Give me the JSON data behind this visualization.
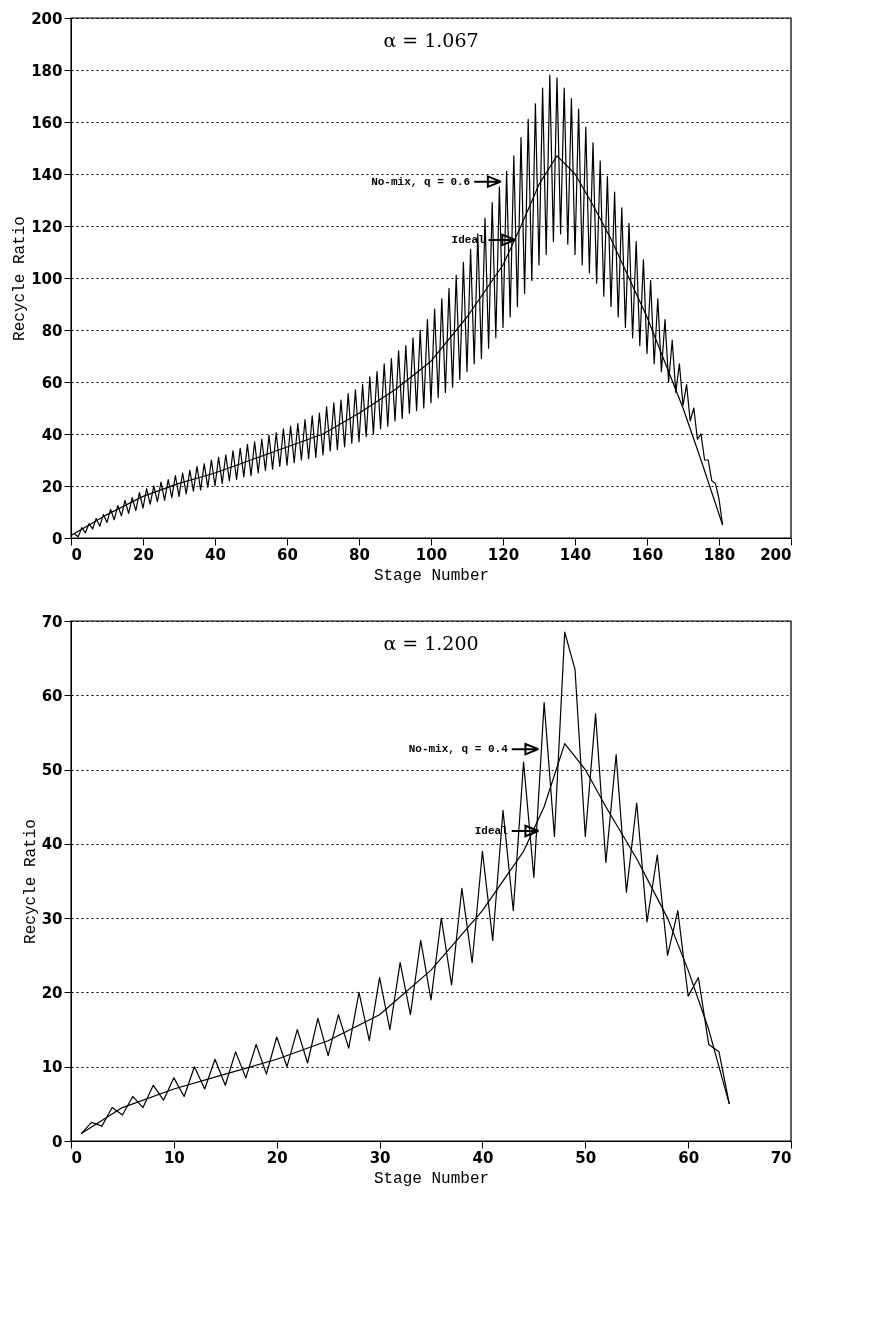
{
  "chart_data": [
    {
      "type": "line",
      "title": "α = 1.067",
      "xlabel": "Stage Number",
      "ylabel": "Recycle Ratio",
      "xlim": [
        0,
        200
      ],
      "ylim": [
        0,
        200
      ],
      "xticks": [
        0,
        20,
        40,
        60,
        80,
        100,
        120,
        140,
        160,
        180,
        200
      ],
      "yticks": [
        0,
        20,
        40,
        60,
        80,
        100,
        120,
        140,
        160,
        180,
        200
      ],
      "grid": "y",
      "legend": "top",
      "marker": "none",
      "line_style": "solid",
      "series": [
        {
          "name": "No-mix, q = 0.6",
          "color": "#000000",
          "x": [
            1,
            2,
            3,
            4,
            5,
            6,
            7,
            8,
            9,
            10,
            11,
            12,
            13,
            14,
            15,
            16,
            17,
            18,
            19,
            20,
            21,
            22,
            23,
            24,
            25,
            26,
            27,
            28,
            29,
            30,
            31,
            32,
            33,
            34,
            35,
            36,
            37,
            38,
            39,
            40,
            41,
            42,
            43,
            44,
            45,
            46,
            47,
            48,
            49,
            50,
            51,
            52,
            53,
            54,
            55,
            56,
            57,
            58,
            59,
            60,
            61,
            62,
            63,
            64,
            65,
            66,
            67,
            68,
            69,
            70,
            71,
            72,
            73,
            74,
            75,
            76,
            77,
            78,
            79,
            80,
            81,
            82,
            83,
            84,
            85,
            86,
            87,
            88,
            89,
            90,
            91,
            92,
            93,
            94,
            95,
            96,
            97,
            98,
            99,
            100,
            101,
            102,
            103,
            104,
            105,
            106,
            107,
            108,
            109,
            110,
            111,
            112,
            113,
            114,
            115,
            116,
            117,
            118,
            119,
            120,
            121,
            122,
            123,
            124,
            125,
            126,
            127,
            128,
            129,
            130,
            131,
            132,
            133,
            134,
            135,
            136,
            137,
            138,
            139,
            140,
            141,
            142,
            143,
            144,
            145,
            146,
            147,
            148,
            149,
            150,
            151,
            152,
            153,
            154,
            155,
            156,
            157,
            158,
            159,
            160,
            161,
            162,
            163,
            164,
            165,
            166,
            167,
            168,
            169,
            170,
            171,
            172,
            173,
            174,
            175,
            176,
            177,
            178,
            179,
            180,
            181
          ],
          "values": [
            1.5,
            0.5,
            4,
            2,
            5.5,
            3.5,
            7.5,
            4.5,
            9,
            6,
            11,
            7,
            12.5,
            8.5,
            14.5,
            9.5,
            15.5,
            10.5,
            17.5,
            11.5,
            19,
            13,
            20,
            14,
            21.5,
            14.5,
            22.5,
            15.5,
            24,
            16,
            25,
            17,
            26,
            18,
            27.5,
            18.5,
            28.5,
            19.5,
            30,
            20,
            31,
            21,
            32,
            22,
            33.5,
            22.5,
            34.5,
            23.5,
            36,
            24,
            37,
            25,
            38,
            26,
            39.5,
            26.5,
            40.5,
            27.5,
            42,
            28,
            43,
            29,
            44,
            30,
            45.5,
            30.5,
            47,
            31,
            48,
            32,
            50.5,
            33.5,
            52,
            34,
            53,
            35,
            55.5,
            36.5,
            57,
            37,
            59,
            39,
            62,
            40,
            64,
            42,
            67,
            43,
            69,
            45,
            72,
            46,
            74,
            48,
            77,
            49,
            80,
            50,
            84,
            52,
            88,
            54,
            92,
            56,
            96,
            58,
            101,
            61,
            106,
            64,
            111,
            67,
            117,
            69,
            123,
            73,
            129,
            77,
            135,
            81,
            141,
            85,
            147,
            89,
            154,
            94,
            161,
            99,
            167,
            105,
            173,
            109,
            178,
            114,
            177,
            117,
            173,
            113,
            169,
            109,
            165,
            105,
            158,
            102,
            152,
            98,
            145,
            93,
            139,
            89,
            133,
            85,
            127,
            81,
            121,
            77,
            114,
            74,
            107,
            71,
            99,
            67,
            92,
            64,
            84,
            60,
            76,
            56,
            67,
            51,
            59,
            45,
            50,
            38,
            40,
            30,
            30,
            22,
            21,
            15,
            5
          ]
        },
        {
          "name": "Ideal",
          "color": "#000000",
          "x": [
            0,
            5,
            10,
            20,
            30,
            40,
            50,
            60,
            70,
            80,
            90,
            100,
            110,
            120,
            125,
            130,
            135,
            140,
            145,
            150,
            160,
            170,
            175,
            181
          ],
          "values": [
            1,
            5,
            9,
            16,
            21,
            25,
            30,
            35,
            40,
            48,
            57,
            68,
            85,
            105,
            120,
            136,
            147,
            140,
            128,
            115,
            85,
            50,
            30,
            5
          ]
        }
      ]
    },
    {
      "type": "line",
      "title": "α = 1.200",
      "xlabel": "Stage Number",
      "ylabel": "Recycle Ratio",
      "xlim": [
        0,
        70
      ],
      "ylim": [
        0,
        70
      ],
      "xticks": [
        0,
        10,
        20,
        30,
        40,
        50,
        60,
        70
      ],
      "yticks": [
        0,
        10,
        20,
        30,
        40,
        50,
        60,
        70
      ],
      "grid": "y",
      "legend": "top",
      "marker": "none",
      "line_style": "solid",
      "series": [
        {
          "name": "No-mix, q = 0.4",
          "color": "#000000",
          "x": [
            1,
            2,
            3,
            4,
            5,
            6,
            7,
            8,
            9,
            10,
            11,
            12,
            13,
            14,
            15,
            16,
            17,
            18,
            19,
            20,
            21,
            22,
            23,
            24,
            25,
            26,
            27,
            28,
            29,
            30,
            31,
            32,
            33,
            34,
            35,
            36,
            37,
            38,
            39,
            40,
            41,
            42,
            43,
            44,
            45,
            46,
            47,
            48,
            49,
            50,
            51,
            52,
            53,
            54,
            55,
            56,
            57,
            58,
            59,
            60,
            61,
            62,
            63,
            64
          ],
          "values": [
            1,
            2.5,
            2,
            4.5,
            3.5,
            6,
            4.5,
            7.5,
            5.5,
            8.5,
            6,
            10,
            7,
            11,
            7.5,
            12,
            8.5,
            13,
            9,
            14,
            10,
            15,
            10.5,
            16.5,
            11.5,
            17,
            12.5,
            20,
            13.5,
            22,
            15,
            24,
            17,
            27,
            19,
            30,
            21,
            34,
            24,
            39,
            27,
            44.5,
            31,
            51,
            35.5,
            59,
            41,
            68.5,
            63.5,
            41,
            57.5,
            37.5,
            52,
            33.5,
            45.5,
            29.5,
            38.5,
            25,
            31,
            19.5,
            22,
            13,
            12,
            5
          ]
        },
        {
          "name": "Ideal",
          "color": "#000000",
          "x": [
            1,
            5,
            10,
            15,
            20,
            25,
            30,
            35,
            40,
            44,
            46,
            48,
            50,
            52,
            55,
            58,
            60,
            62,
            64
          ],
          "values": [
            1,
            4.5,
            7,
            9,
            11,
            13.5,
            17,
            23,
            31,
            39,
            45,
            53.5,
            50,
            45,
            38,
            30,
            23,
            15,
            5
          ]
        }
      ]
    }
  ]
}
